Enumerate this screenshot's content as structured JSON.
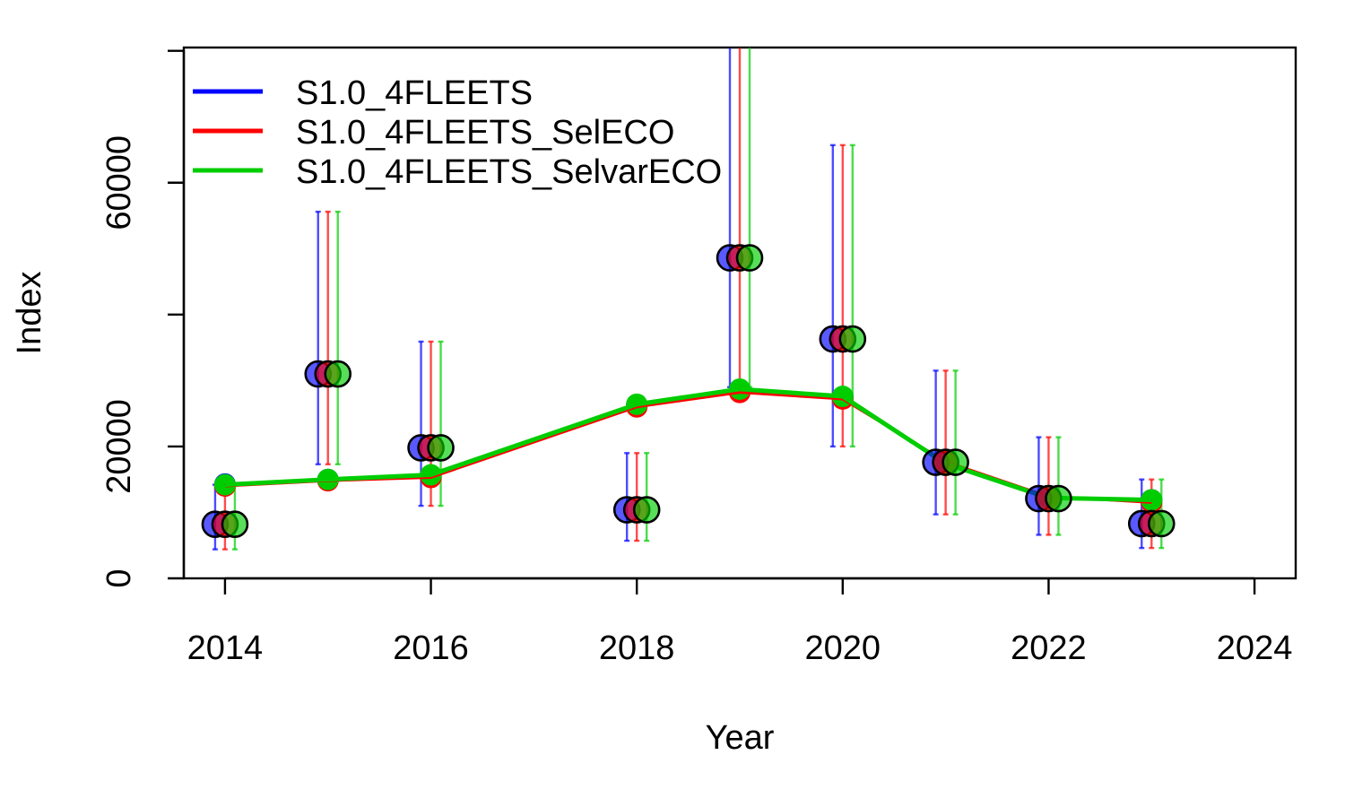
{
  "chart_data": {
    "type": "line",
    "title": "",
    "xlabel": "Year",
    "ylabel": "Index",
    "xlim": [
      2013.6,
      2024.4
    ],
    "ylim": [
      0,
      80500
    ],
    "x_ticks": [
      2014,
      2016,
      2018,
      2020,
      2022,
      2024
    ],
    "x_tick_labels": [
      "2014",
      "2016",
      "2018",
      "2020",
      "2022",
      "2024"
    ],
    "y_ticks": [
      0,
      20000,
      40000,
      60000,
      80000
    ],
    "y_tick_labels": [
      "0",
      "20000",
      "",
      "60000",
      ""
    ],
    "grid": false,
    "legend_position": "top-left",
    "years": [
      2014,
      2015,
      2016,
      2018,
      2019,
      2020,
      2021,
      2022,
      2023
    ],
    "observed": {
      "values": [
        8200,
        31000,
        19800,
        10400,
        48600,
        36300,
        17600,
        12100,
        8300
      ],
      "lower": [
        4400,
        17300,
        11000,
        5700,
        29000,
        20000,
        9700,
        6600,
        4600
      ],
      "upper": [
        14200,
        55600,
        35900,
        19000,
        87000,
        65700,
        31500,
        21400,
        15000
      ]
    },
    "series": [
      {
        "name": "S1.0_4FLEETS",
        "color": "#0000ff",
        "fitted": [
          14300,
          15000,
          15600,
          26300,
          28600,
          27500,
          17500,
          12200,
          11900
        ]
      },
      {
        "name": "S1.0_4FLEETS_SelECO",
        "color": "#ff0000",
        "fitted": [
          14000,
          14800,
          15300,
          26000,
          28200,
          27200,
          17700,
          12400,
          11500
        ]
      },
      {
        "name": "S1.0_4FLEETS_SelvarECO",
        "color": "#00cd00",
        "fitted": [
          14200,
          15000,
          15700,
          26400,
          28700,
          27600,
          17400,
          12200,
          11900
        ]
      }
    ]
  }
}
